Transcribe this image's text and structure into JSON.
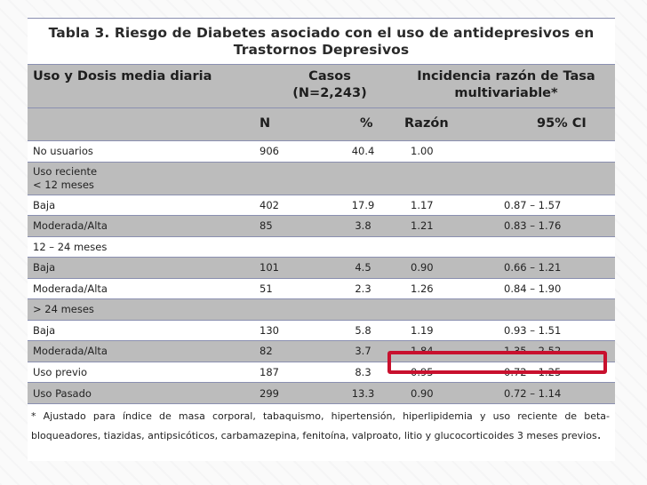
{
  "title": "Tabla 3. Riesgo de Diabetes asociado con el uso de antidepresivos en Trastornos Depresivos",
  "header": {
    "col1": "Uso y Dosis media diaria",
    "col2_line1": "Casos",
    "col2_line2": "(N=2,243)",
    "col3_line1": "Incidencia razón de Tasa",
    "col3_line2": "multivariable*",
    "sub_n": "N",
    "sub_pct": "%",
    "sub_ratio": "Razón",
    "sub_ci": "95% CI"
  },
  "rows": [
    {
      "label": "No usuarios",
      "n": "906",
      "pct": "40.4",
      "ratio": "1.00",
      "ci": ""
    },
    {
      "label": "Uso reciente",
      "label2": "<  12 meses",
      "n": "",
      "pct": "",
      "ratio": "",
      "ci": ""
    },
    {
      "label": "Baja",
      "n": "402",
      "pct": "17.9",
      "ratio": "1.17",
      "ci": "0.87 – 1.57"
    },
    {
      "label": "Moderada/Alta",
      "n": "85",
      "pct": "3.8",
      "ratio": "1.21",
      "ci": "0.83 – 1.76"
    },
    {
      "label": "12 – 24 meses",
      "n": "",
      "pct": "",
      "ratio": "",
      "ci": ""
    },
    {
      "label": "Baja",
      "n": "101",
      "pct": "4.5",
      "ratio": "0.90",
      "ci": "0.66 – 1.21"
    },
    {
      "label": "Moderada/Alta",
      "n": "51",
      "pct": "2.3",
      "ratio": "1.26",
      "ci": "0.84 – 1.90"
    },
    {
      "label": "> 24 meses",
      "n": "",
      "pct": "",
      "ratio": "",
      "ci": ""
    },
    {
      "label": "Baja",
      "n": "130",
      "pct": "5.8",
      "ratio": "1.19",
      "ci": "0.93 – 1.51"
    },
    {
      "label": "Moderada/Alta",
      "n": "82",
      "pct": "3.7",
      "ratio": "1.84",
      "ci": "1.35 – 2.52"
    },
    {
      "label": "Uso previo",
      "n": "187",
      "pct": "8.3",
      "ratio": "0.95",
      "ci": "0.72 – 1.25"
    },
    {
      "label": "Uso Pasado",
      "n": "299",
      "pct": "13.3",
      "ratio": "0.90",
      "ci": "0.72 – 1.14"
    }
  ],
  "footnote": "* Ajustado para índice de masa corporal, tabaquismo, hipertensión, hiperlipidemia y uso reciente de beta-bloqueadores, tiazidas, antipsicóticos, carbamazepina, fenitoína, valproato, litio y glucocorticoides 3 meses previos",
  "footnote_end": ".",
  "colors": {
    "highlight": "#c8102e",
    "header_bg": "#bcbcbc",
    "rule": "#8a8fb0"
  }
}
